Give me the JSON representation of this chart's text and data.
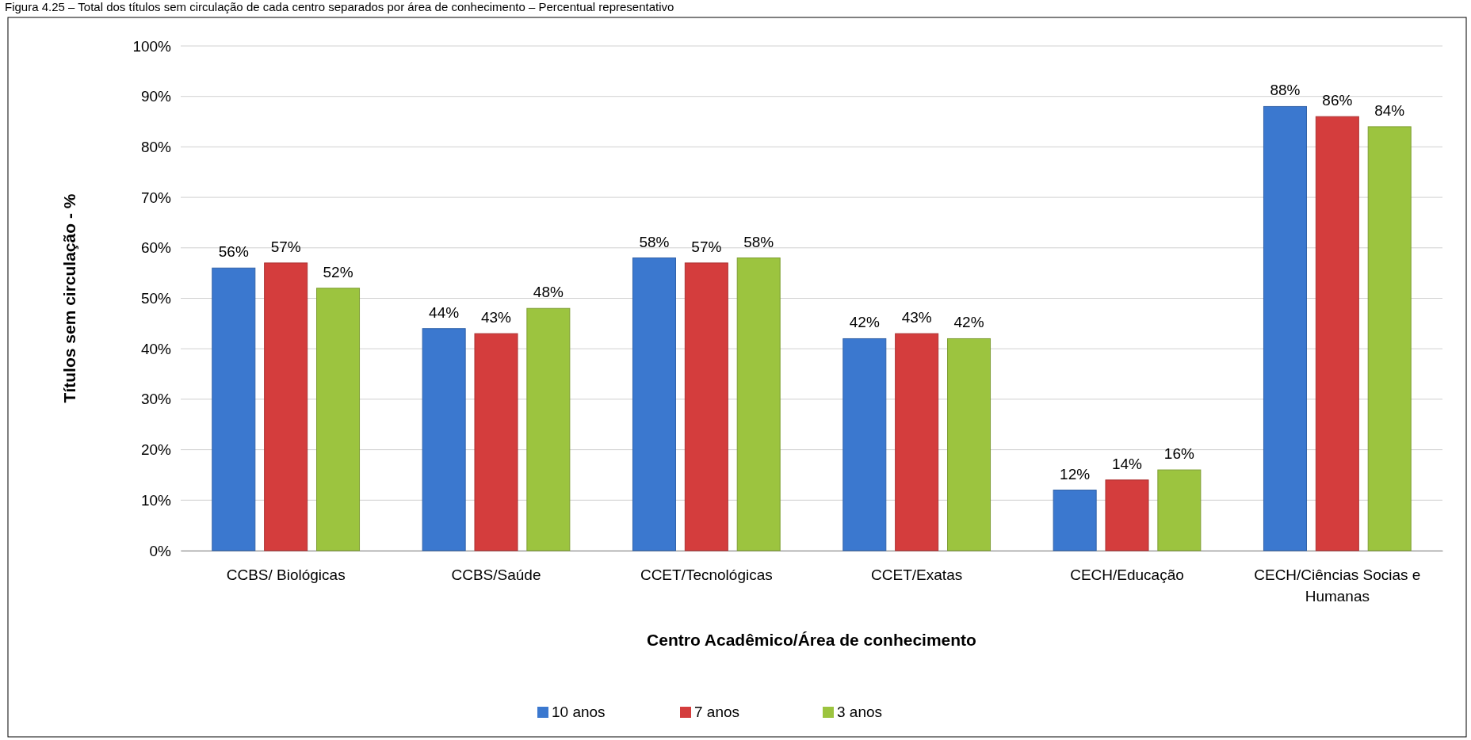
{
  "chart_data": {
    "type": "bar",
    "title": "Figura 4.25 – Total dos títulos sem circulação de cada centro separados por área de conhecimento – Percentual representativo",
    "xlabel": "Centro Acadêmico/Área de conhecimento",
    "ylabel": "Títulos sem circulação - %",
    "categories": [
      "CCBS/ Biológicas",
      "CCBS/Saúde",
      "CCET/Tecnológicas",
      "CCET/Exatas",
      "CECH/Educação",
      "CECH/Ciências Socias e Humanas"
    ],
    "series": [
      {
        "name": "10 anos",
        "color": "#3b78cf",
        "values": [
          56,
          44,
          58,
          42,
          12,
          88
        ],
        "value_labels": [
          "56%",
          "44%",
          "58%",
          "42%",
          "12%",
          "88%"
        ]
      },
      {
        "name": "7 anos",
        "color": "#d43d3d",
        "values": [
          57,
          43,
          57,
          43,
          14,
          86
        ],
        "value_labels": [
          "57%",
          "43%",
          "57%",
          "43%",
          "14%",
          "86%"
        ]
      },
      {
        "name": "3 anos",
        "color": "#9cc43f",
        "values": [
          52,
          48,
          58,
          42,
          16,
          84
        ],
        "value_labels": [
          "52%",
          "48%",
          "58%",
          "42%",
          "16%",
          "84%"
        ]
      }
    ],
    "ylim": [
      0,
      100
    ],
    "yticks": [
      {
        "value": 0,
        "label": "0%"
      },
      {
        "value": 10,
        "label": "10%"
      },
      {
        "value": 20,
        "label": "20%"
      },
      {
        "value": 30,
        "label": "30%"
      },
      {
        "value": 40,
        "label": "40%"
      },
      {
        "value": 50,
        "label": "50%"
      },
      {
        "value": 60,
        "label": "60%"
      },
      {
        "value": 70,
        "label": "70%"
      },
      {
        "value": 80,
        "label": "80%"
      },
      {
        "value": 90,
        "label": "90%"
      },
      {
        "value": 100,
        "label": "100%"
      }
    ],
    "grid": "y",
    "legend": "bottom"
  }
}
